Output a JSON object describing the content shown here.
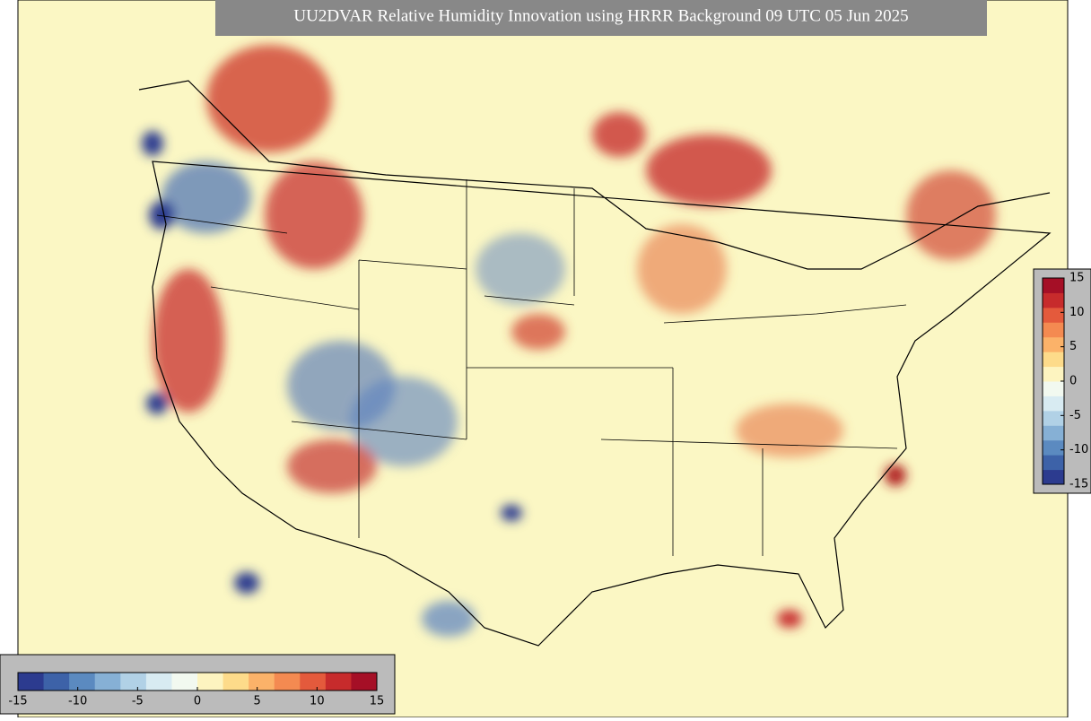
{
  "title": "UU2DVAR Relative Humidity Innovation using HRRR Background 09 UTC 05 Jun 2025",
  "colorbar_vertical": {
    "range": [
      -15,
      15
    ],
    "ticks": [
      -15,
      -10,
      -5,
      0,
      5,
      10,
      15
    ]
  },
  "colorbar_horizontal": {
    "range": [
      -15,
      15
    ],
    "ticks": [
      -15,
      -10,
      -5,
      0,
      5,
      10,
      15
    ]
  },
  "colors": [
    "#2c3b8f",
    "#3d62a8",
    "#5b8ac0",
    "#86b0d5",
    "#b1d1e6",
    "#d8ebf2",
    "#f2f9f0",
    "#fdf4c0",
    "#fddb8a",
    "#fbb269",
    "#f48a51",
    "#e45a3c",
    "#c72b2c",
    "#a50f26"
  ]
}
